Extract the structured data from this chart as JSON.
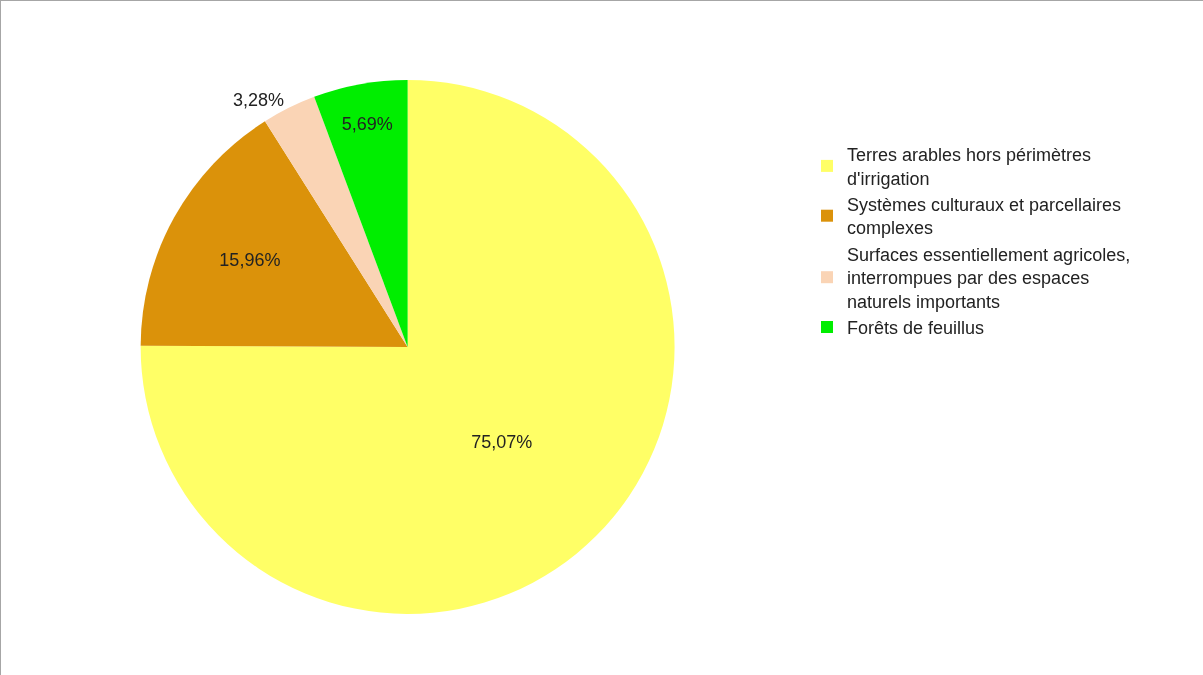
{
  "chart_data": {
    "type": "pie",
    "categories": [
      "Terres arables hors périmètres d'irrigation",
      "Systèmes culturaux et parcellaires complexes",
      "Surfaces essentiellement agricoles, interrompues par des espaces naturels importants",
      "Forêts de feuillus"
    ],
    "values": [
      75.07,
      15.96,
      3.28,
      5.69
    ],
    "value_labels": [
      "75,07%",
      "15,96%",
      "3,28%",
      "5,69%"
    ],
    "colors": [
      "#ffff66",
      "#db920a",
      "#fad4b5",
      "#00ee00"
    ],
    "legend": "right"
  }
}
